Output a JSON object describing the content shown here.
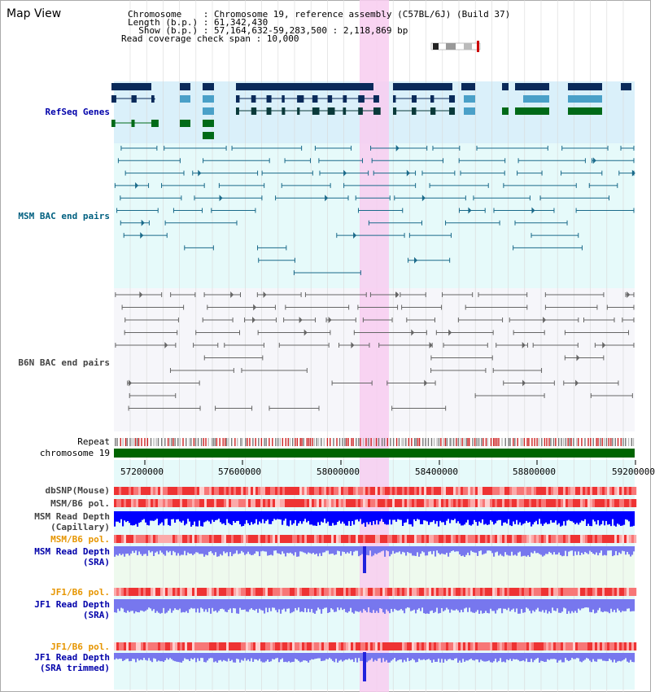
{
  "header": {
    "title": "Map View",
    "chromosome_line": "Chromosome    : Chromosome 19, reference assembly (C57BL/6J) (Build 37)",
    "length_line": "Length (b.p.) : 61,342,430",
    "show_line": "  Show (b.p.) : 57,164,632-59,283,500 : 2,118,869 bp",
    "coverage_line": "Read coverage check span : 10,000"
  },
  "tracks": {
    "refseq": "RefSeq Genes",
    "msm_bac": "MSM BAC end pairs",
    "b6n_bac": "B6N BAC end pairs",
    "repeat": "Repeat",
    "chromosome": "chromosome 19",
    "dbsnp": "dbSNP(Mouse)",
    "msm_b6_pol_1": "MSM/B6 pol.",
    "msm_read_depth_cap_1": "MSM Read Depth",
    "msm_read_depth_cap_2": "(Capillary)",
    "msm_b6_pol_2": "MSM/B6 pol.",
    "msm_read_depth_sra_1": "MSM Read Depth",
    "msm_read_depth_sra_2": "(SRA)",
    "jf1_b6_pol_1": "JF1/B6 pol.",
    "jf1_read_depth_sra_1": "JF1 Read Depth",
    "jf1_read_depth_sra_2": "(SRA)",
    "jf1_b6_pol_2": "JF1/B6 pol.",
    "jf1_read_depth_trim_1": "JF1 Read Depth",
    "jf1_read_depth_trim_2": "(SRA trimmed)"
  },
  "axis": {
    "ticks": [
      "57200000",
      "57600000",
      "58000000",
      "58400000",
      "58800000",
      "59200000"
    ]
  },
  "colors": {
    "highlight": "#f8ccf0",
    "refseq_bg": "#daf0fa",
    "bac_bg": "#e6fafa",
    "gene_navy": "#0a2a5a",
    "gene_light": "#4aa0c8",
    "gene_green": "#006a18",
    "msm_bac": "#1a6a8a",
    "b6n_bac": "#666666",
    "chromosome": "#006400",
    "depth_blue": "#0000ff",
    "depth_light": "#7777ee",
    "pol_red": "#ee3333"
  }
}
